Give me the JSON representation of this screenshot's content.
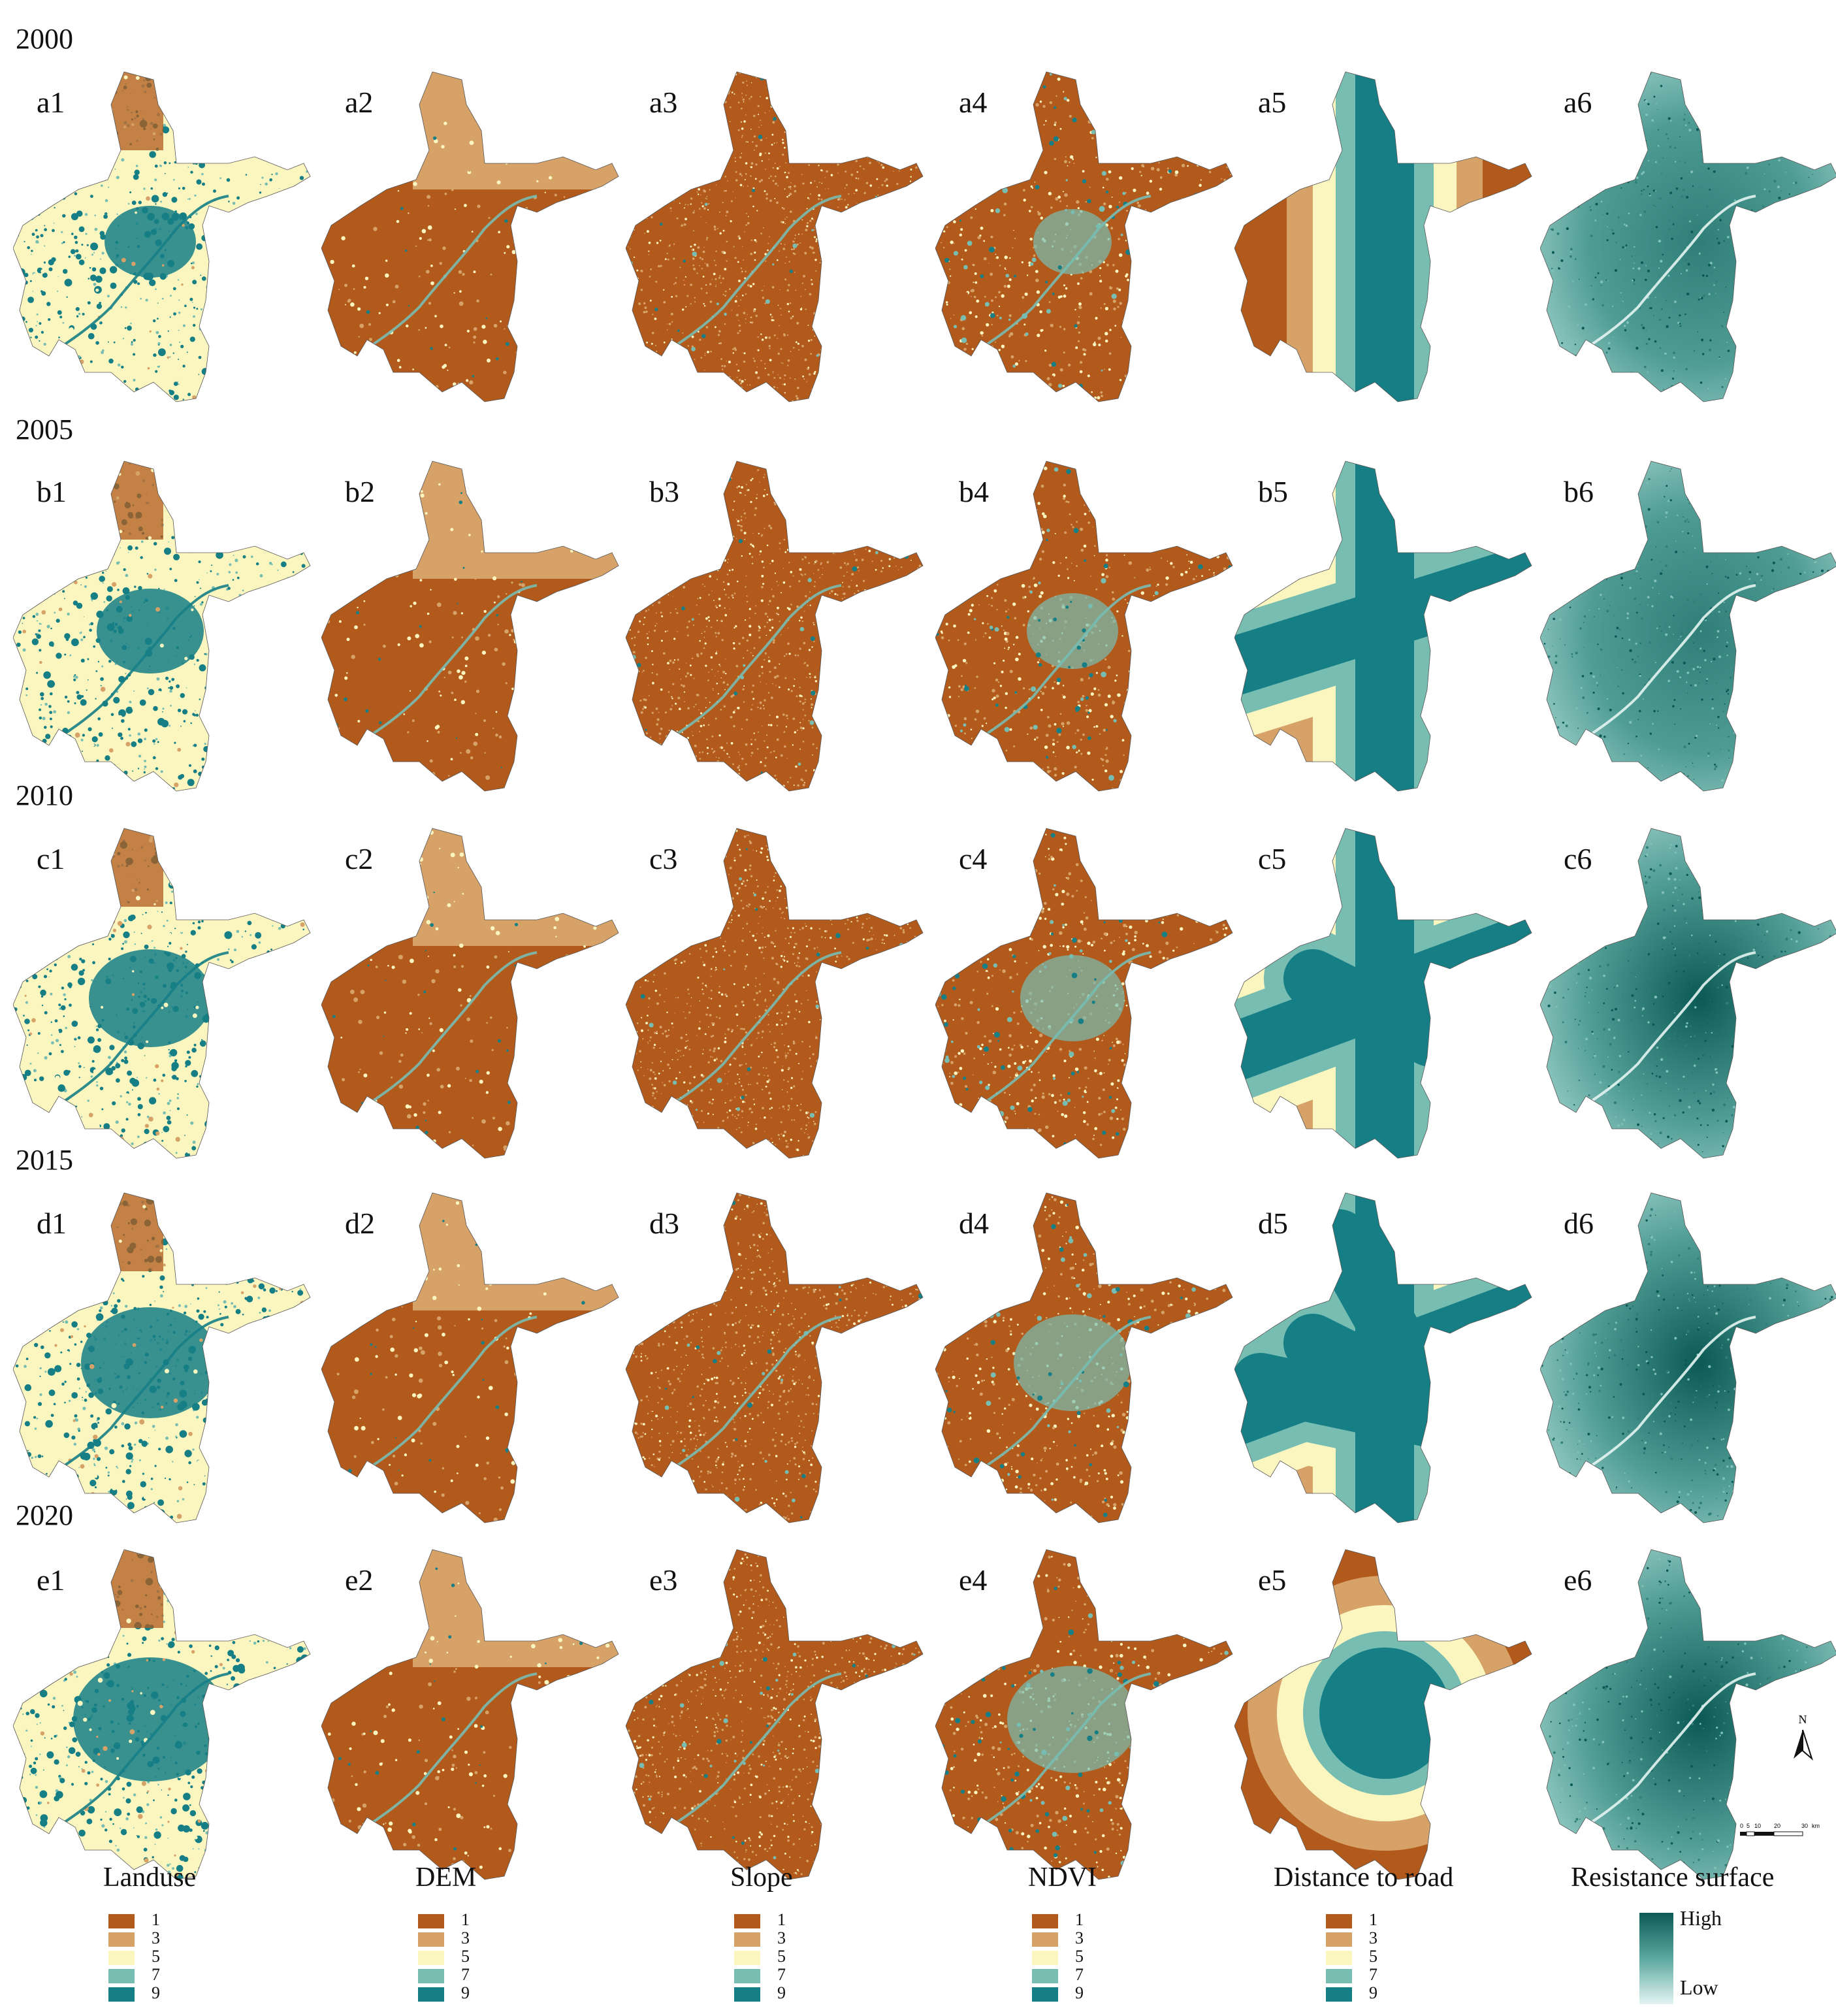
{
  "years": [
    "2000",
    "2005",
    "2010",
    "2015",
    "2020"
  ],
  "panels": [
    [
      "a1",
      "a2",
      "a3",
      "a4",
      "a5",
      "a6"
    ],
    [
      "b1",
      "b2",
      "b3",
      "b4",
      "b5",
      "b6"
    ],
    [
      "c1",
      "c2",
      "c3",
      "c4",
      "c5",
      "c6"
    ],
    [
      "d1",
      "d2",
      "d3",
      "d4",
      "d5",
      "d6"
    ],
    [
      "e1",
      "e2",
      "e3",
      "e4",
      "e5",
      "e6"
    ]
  ],
  "columns": [
    "Landuse",
    "DEM",
    "Slope",
    "NDVI",
    "Distance to road",
    "Resistance surface"
  ],
  "class_legend": {
    "values": [
      "1",
      "3",
      "5",
      "7",
      "9"
    ],
    "colors": [
      "#b25a1c",
      "#d6a268",
      "#fbf6c0",
      "#78bdb2",
      "#167f86"
    ]
  },
  "resistance_legend": {
    "high": "High",
    "low": "Low",
    "high_color": "#0b5a55",
    "low_color": "#e4f4f2"
  },
  "map_meta": {
    "north_label": "N",
    "scale_labels": [
      "0",
      "5",
      "10",
      "20",
      "30"
    ],
    "scale_unit": "km"
  }
}
